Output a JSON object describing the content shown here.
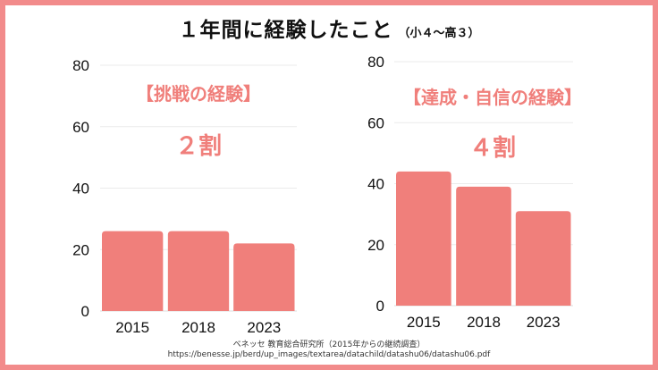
{
  "title": {
    "main": "１年間に経験したこと",
    "sub": "（小４～高３）"
  },
  "source": {
    "line1": "ベネッセ 教育総合研究所（2015年からの継続調査）",
    "line2": "https://benesse.jp/berd/up_images/textarea/datachild/datashu06/datashu06.pdf"
  },
  "colors": {
    "frame": "#f28b8b",
    "bar": "#f07f7b",
    "annotation": "#f07f7b",
    "grid": "#ebebeb"
  },
  "chart_data": [
    {
      "type": "bar",
      "title": "【挑戦の経験】",
      "annotation": "２割",
      "categories": [
        "2015",
        "2018",
        "2023"
      ],
      "values": [
        26,
        26,
        22
      ],
      "yticks": [
        "0",
        "20",
        "40",
        "60",
        "80"
      ],
      "ylim": [
        0,
        80
      ],
      "xlabel": "",
      "ylabel": "",
      "grid": true
    },
    {
      "type": "bar",
      "title": "【達成・自信の経験】",
      "annotation": "４割",
      "categories": [
        "2015",
        "2018",
        "2023"
      ],
      "values": [
        44,
        39,
        31
      ],
      "yticks": [
        "0",
        "20",
        "40",
        "60",
        "80"
      ],
      "ylim": [
        0,
        80
      ],
      "xlabel": "",
      "ylabel": "",
      "grid": true
    }
  ]
}
